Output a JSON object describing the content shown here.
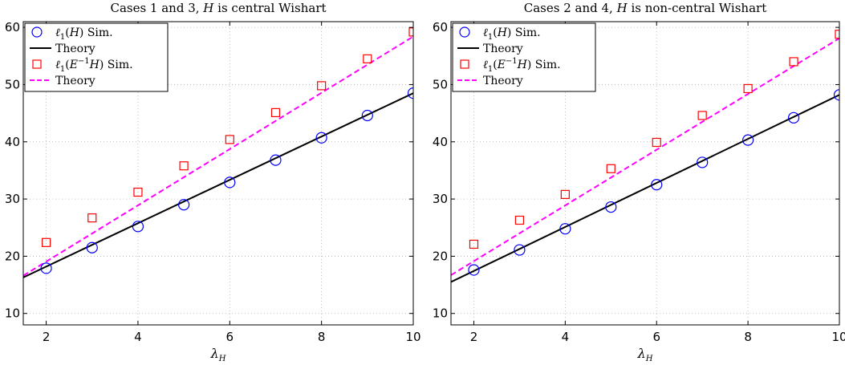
{
  "chart_data": [
    {
      "type": "line",
      "title": "Cases 1 and 3, H is central Wishart",
      "xlabel": "λ_H",
      "ylabel": "",
      "xlim": [
        1.5,
        10
      ],
      "ylim": [
        8,
        61
      ],
      "xticks": [
        2,
        4,
        6,
        8,
        10
      ],
      "yticks": [
        10,
        20,
        30,
        40,
        50,
        60
      ],
      "grid": true,
      "legend_position": "top-left",
      "series": [
        {
          "name": "ℓ1(H) Sim.",
          "style": "circle",
          "color": "#0000ff",
          "x": [
            2,
            3,
            4,
            5,
            6,
            7,
            8,
            9,
            10
          ],
          "y": [
            17.9,
            21.5,
            25.2,
            29.0,
            32.9,
            36.8,
            40.7,
            44.6,
            48.5
          ]
        },
        {
          "name": "Theory",
          "style": "solid",
          "color": "#000000",
          "x": [
            1.5,
            10
          ],
          "y": [
            16.3,
            48.5
          ]
        },
        {
          "name": "ℓ1(E⁻¹H) Sim.",
          "style": "square",
          "color": "#ff0000",
          "x": [
            2,
            3,
            4,
            5,
            6,
            7,
            8,
            9,
            10
          ],
          "y": [
            22.4,
            26.7,
            31.2,
            35.8,
            40.4,
            45.1,
            49.8,
            54.5,
            59.2
          ]
        },
        {
          "name": "Theory",
          "style": "dashed",
          "color": "#ff00ff",
          "x": [
            1.5,
            10
          ],
          "y": [
            16.6,
            58.4
          ]
        }
      ]
    },
    {
      "type": "line",
      "title": "Cases 2 and 4, H is non-central Wishart",
      "xlabel": "λ_H",
      "ylabel": "",
      "xlim": [
        1.5,
        10
      ],
      "ylim": [
        8,
        61
      ],
      "xticks": [
        2,
        4,
        6,
        8,
        10
      ],
      "yticks": [
        10,
        20,
        30,
        40,
        50,
        60
      ],
      "grid": true,
      "legend_position": "top-left",
      "series": [
        {
          "name": "ℓ1(H) Sim.",
          "style": "circle",
          "color": "#0000ff",
          "x": [
            2,
            3,
            4,
            5,
            6,
            7,
            8,
            9,
            10
          ],
          "y": [
            17.6,
            21.1,
            24.8,
            28.6,
            32.5,
            36.4,
            40.3,
            44.2,
            48.2
          ]
        },
        {
          "name": "Theory",
          "style": "solid",
          "color": "#000000",
          "x": [
            1.5,
            10
          ],
          "y": [
            15.5,
            48.2
          ]
        },
        {
          "name": "ℓ1(E⁻¹H) Sim.",
          "style": "square",
          "color": "#ff0000",
          "x": [
            2,
            3,
            4,
            5,
            6,
            7,
            8,
            9,
            10
          ],
          "y": [
            22.1,
            26.3,
            30.8,
            35.3,
            39.9,
            44.6,
            49.3,
            54.0,
            58.8
          ]
        },
        {
          "name": "Theory",
          "style": "dashed",
          "color": "#ff00ff",
          "x": [
            1.5,
            10
          ],
          "y": [
            16.7,
            58.1
          ]
        }
      ]
    }
  ]
}
